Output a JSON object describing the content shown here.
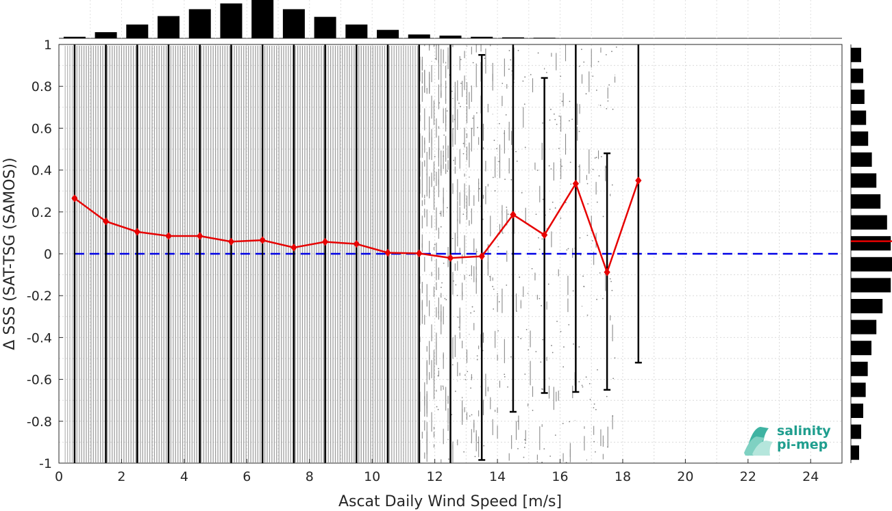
{
  "chart_data": {
    "type": "scatter",
    "xlabel": "Ascat Daily Wind Speed [m/s]",
    "ylabel": "Δ SSS (SAT-TSG (SAMOS))",
    "xlim": [
      0,
      25
    ],
    "ylim": [
      -1,
      1
    ],
    "xticks": [
      0,
      2,
      4,
      6,
      8,
      10,
      12,
      14,
      16,
      18,
      20,
      22,
      24
    ],
    "yticks": [
      -1,
      -0.8,
      -0.6,
      -0.4,
      -0.2,
      0,
      0.2,
      0.4,
      0.6,
      0.8,
      1
    ],
    "ytick_labels": [
      "-1",
      "-0.8",
      "-0.6",
      "-0.4",
      "-0.2",
      "0",
      "0.2",
      "0.4",
      "0.6",
      "0.8",
      "1"
    ],
    "grid": true,
    "reference_line": {
      "y": 0,
      "color": "#0000e6",
      "style": "dashed"
    },
    "scatter_color": "#808080",
    "bin_means": {
      "color": "#e60000",
      "x": [
        0.5,
        1.5,
        2.5,
        3.5,
        4.5,
        5.5,
        6.5,
        7.5,
        8.5,
        9.5,
        10.5,
        11.5,
        12.5,
        13.5,
        14.5,
        15.5,
        16.5,
        17.5,
        18.5
      ],
      "y": [
        0.265,
        0.155,
        0.105,
        0.085,
        0.085,
        0.058,
        0.065,
        0.03,
        0.057,
        0.047,
        0.005,
        0.002,
        -0.02,
        -0.012,
        0.187,
        0.09,
        0.335,
        -0.088,
        0.35
      ]
    },
    "error_bars": {
      "color": "#000000",
      "x": [
        0.5,
        1.5,
        2.5,
        3.5,
        4.5,
        5.5,
        6.5,
        7.5,
        8.5,
        9.5,
        10.5,
        11.5,
        12.5,
        13.5,
        14.5,
        15.5,
        16.5,
        17.5,
        18.5
      ],
      "lower": [
        -1,
        -1,
        -1,
        -1,
        -1,
        -1,
        -1,
        -1,
        -1,
        -1,
        -1,
        -1,
        -1,
        -0.985,
        -0.755,
        -0.665,
        -0.66,
        -0.65,
        -0.52
      ],
      "upper": [
        1,
        1,
        1,
        1,
        1,
        1,
        1,
        1,
        1,
        1,
        1,
        1,
        1,
        0.95,
        1,
        0.84,
        1,
        0.48,
        1
      ]
    },
    "top_histogram": {
      "bins": [
        0.5,
        1.5,
        2.5,
        3.5,
        4.5,
        5.5,
        6.5,
        7.5,
        8.5,
        9.5,
        10.5,
        11.5,
        12.5,
        13.5,
        14.5,
        15.5
      ],
      "relative_counts": [
        0.04,
        0.16,
        0.36,
        0.58,
        0.76,
        0.91,
        1.0,
        0.76,
        0.56,
        0.36,
        0.22,
        0.1,
        0.07,
        0.04,
        0.025,
        0.015
      ]
    },
    "right_histogram": {
      "bins": [
        0.95,
        0.85,
        0.75,
        0.65,
        0.55,
        0.45,
        0.35,
        0.25,
        0.15,
        0.05,
        -0.05,
        -0.15,
        -0.25,
        -0.35,
        -0.45,
        -0.55,
        -0.65,
        -0.75,
        -0.85,
        -0.95
      ],
      "relative_counts": [
        0.25,
        0.3,
        0.33,
        0.37,
        0.42,
        0.51,
        0.62,
        0.72,
        0.88,
        0.97,
        1.0,
        0.97,
        0.77,
        0.62,
        0.5,
        0.41,
        0.36,
        0.3,
        0.25,
        0.2
      ],
      "mean_line": {
        "y": 0.06,
        "color": "#e60000"
      }
    }
  },
  "logo": {
    "line1": "salinity",
    "line2": "pi-mep"
  }
}
